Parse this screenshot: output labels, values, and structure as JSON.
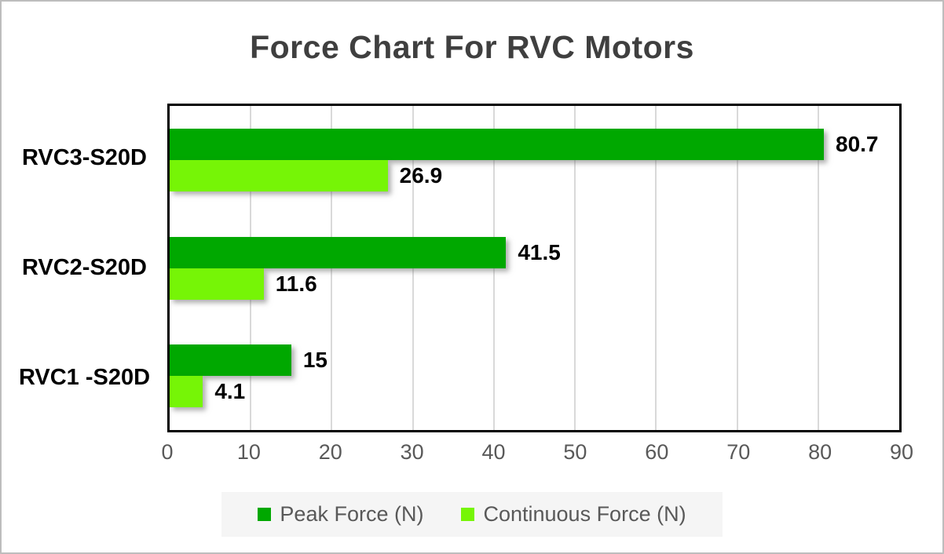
{
  "frame": {
    "background": "#ffffff",
    "border_color": "#bdbdbd"
  },
  "chart_data": {
    "type": "bar",
    "orientation": "horizontal",
    "title": "Force Chart For RVC Motors",
    "categories": [
      "RVC3-S20D",
      "RVC2-S20D",
      "RVC1 -S20D"
    ],
    "series": [
      {
        "name": "Peak Force (N)",
        "color": "#00A800",
        "values": [
          80.7,
          41.5,
          15
        ],
        "labels": [
          "80.7",
          "41.5",
          "15"
        ]
      },
      {
        "name": "Continuous Force (N)",
        "color": "#76F506",
        "values": [
          26.9,
          11.6,
          4.1
        ],
        "labels": [
          "26.9",
          "11.6",
          "4.1"
        ]
      }
    ],
    "xlim": [
      0,
      90
    ],
    "x_ticks": [
      "0",
      "10",
      "20",
      "30",
      "40",
      "50",
      "60",
      "70",
      "80",
      "90"
    ],
    "grid": "vertical",
    "gridline_color": "#d9d9d9",
    "plot_border_color": "#000000",
    "legend_position": "bottom",
    "legend_background": "#f5f5f5"
  },
  "styles": {
    "title_color": "#3f3f3f",
    "axis_text_color": "#595959",
    "data_label_color": "#000000",
    "category_label_color": "#000000"
  }
}
